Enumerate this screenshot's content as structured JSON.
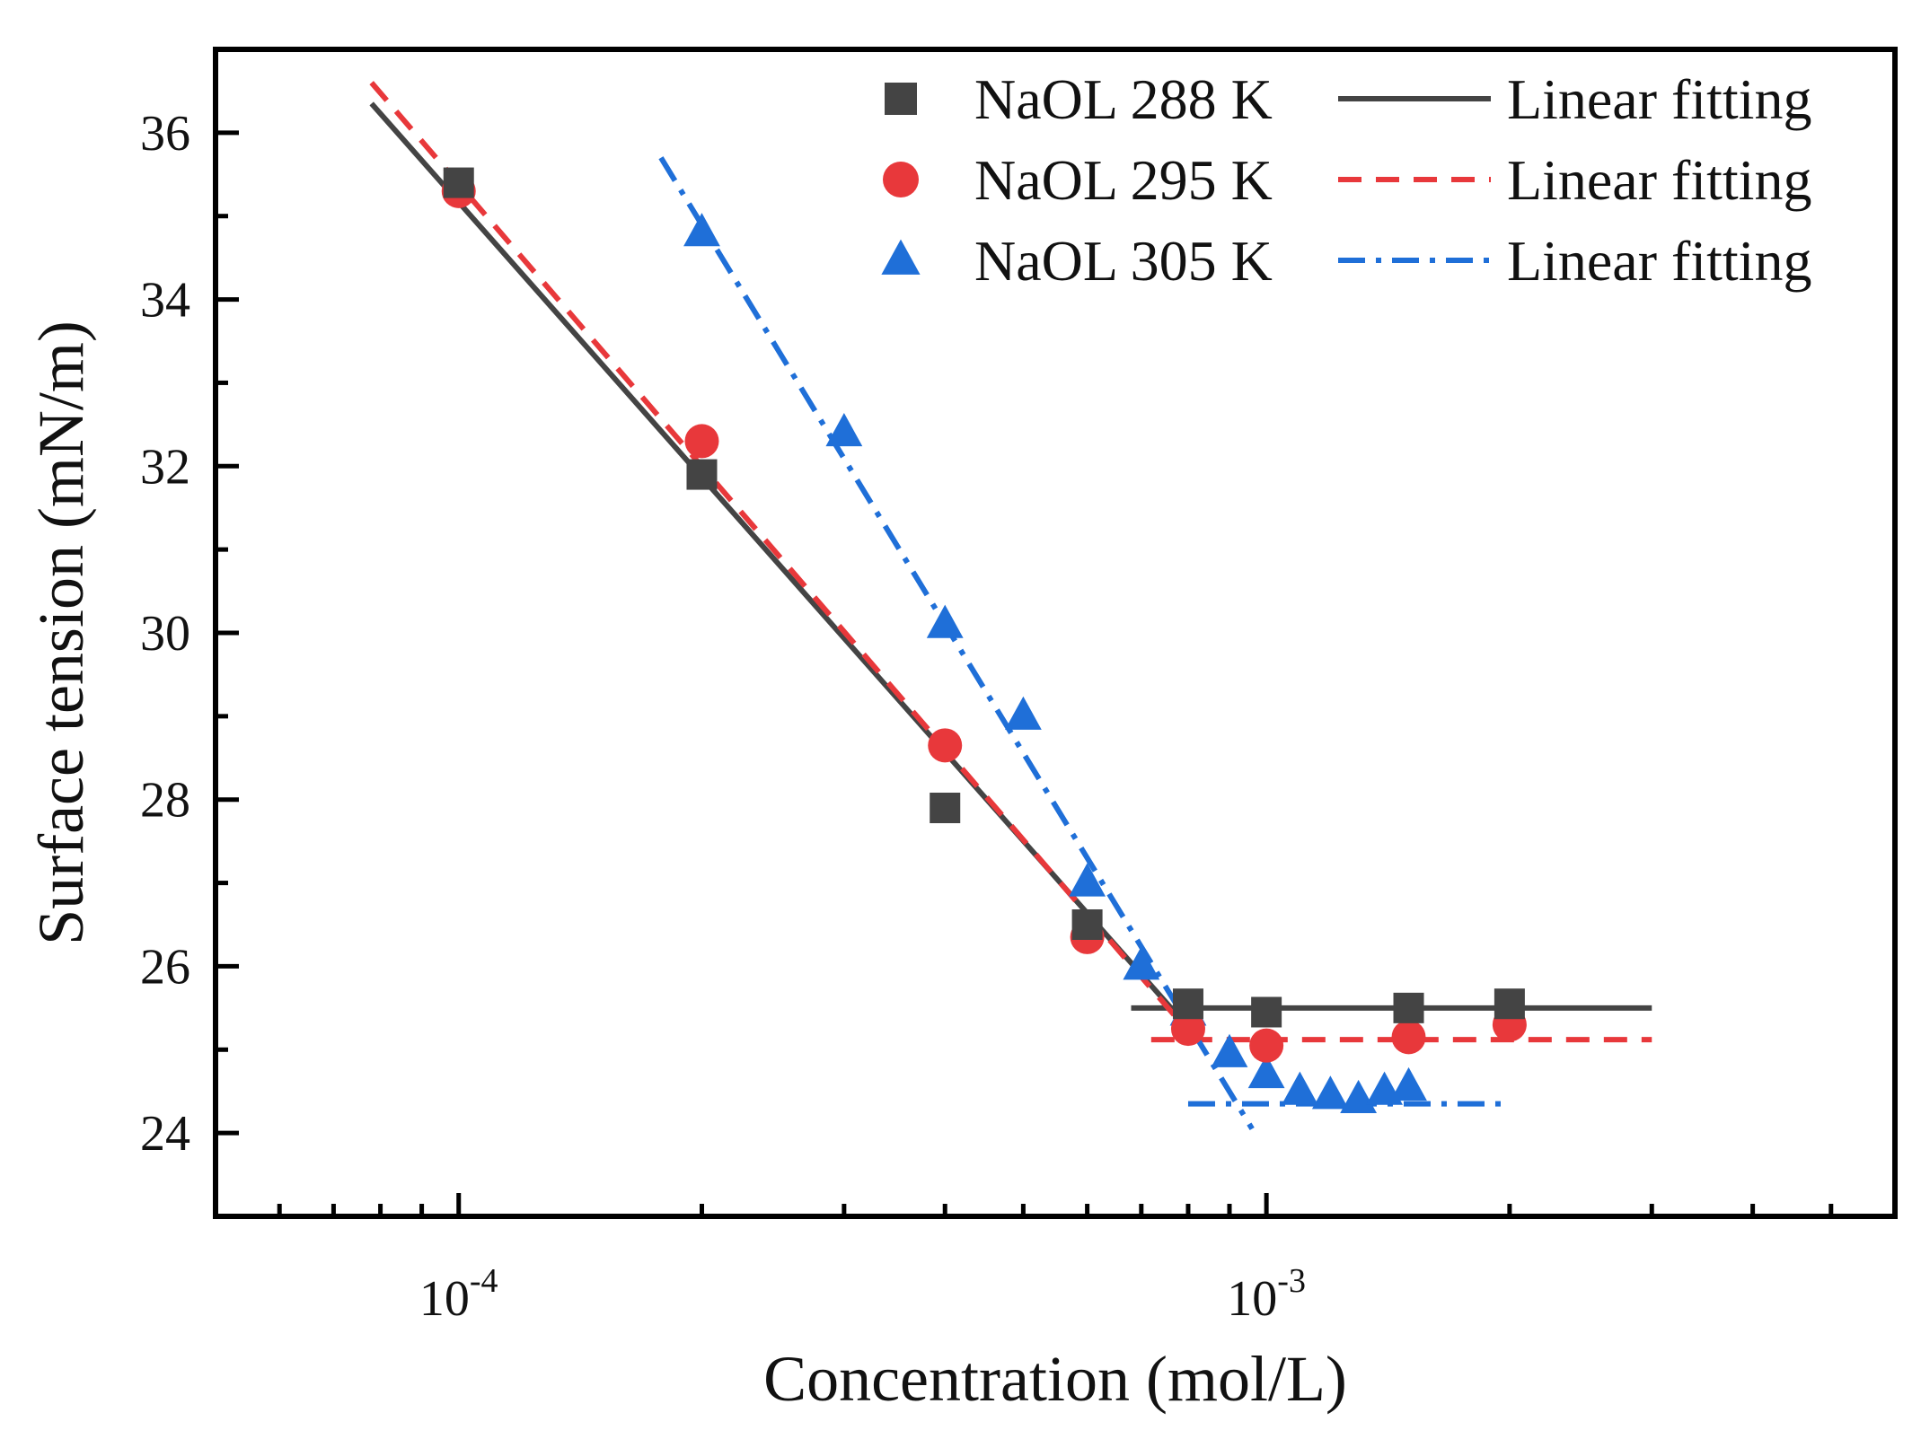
{
  "chart_data": {
    "type": "scatter",
    "xscale": "log",
    "xlim": [
      5e-05,
      0.006
    ],
    "ylim": [
      23.0,
      37.0
    ],
    "xlabel": "Concentration (mol/L)",
    "ylabel": "Surface tension (mN/m)",
    "x_ticks": [
      {
        "value": 0.0001,
        "base": "10",
        "exp": "-4"
      },
      {
        "value": 0.001,
        "base": "10",
        "exp": "-3"
      }
    ],
    "y_ticks": [
      24,
      26,
      28,
      30,
      32,
      34,
      36
    ],
    "legend_position": "top-right",
    "series": [
      {
        "name": "NaOL 288 K",
        "marker": "square",
        "color": "#444444",
        "points": [
          [
            0.0001,
            35.4
          ],
          [
            0.0002,
            31.9
          ],
          [
            0.0004,
            27.9
          ],
          [
            0.0006,
            26.5
          ],
          [
            0.0008,
            25.55
          ],
          [
            0.001,
            25.45
          ],
          [
            0.0015,
            25.5
          ],
          [
            0.002,
            25.55
          ]
        ],
        "fit_label": "Linear fitting",
        "fit_style": "solid",
        "fit_segments": [
          [
            [
              7.8e-05,
              36.35
            ],
            [
              0.00082,
              25.15
            ]
          ],
          [
            [
              0.00068,
              25.5
            ],
            [
              0.003,
              25.5
            ]
          ]
        ]
      },
      {
        "name": "NaOL 295 K",
        "marker": "circle",
        "color": "#e8383b",
        "points": [
          [
            0.0001,
            35.3
          ],
          [
            0.0002,
            32.3
          ],
          [
            0.0004,
            28.65
          ],
          [
            0.0006,
            26.35
          ],
          [
            0.0008,
            25.25
          ],
          [
            0.001,
            25.05
          ],
          [
            0.0015,
            25.15
          ],
          [
            0.002,
            25.3
          ]
        ],
        "fit_label": "Linear fitting",
        "fit_style": "dashed",
        "fit_segments": [
          [
            [
              7.8e-05,
              36.6
            ],
            [
              0.00082,
              25.1
            ]
          ],
          [
            [
              0.00072,
              25.12
            ],
            [
              0.003,
              25.12
            ]
          ]
        ]
      },
      {
        "name": "NaOL 305 K",
        "marker": "triangle",
        "color": "#1f6fd8",
        "points": [
          [
            0.0002,
            34.8
          ],
          [
            0.0003,
            32.4
          ],
          [
            0.0004,
            30.1
          ],
          [
            0.0005,
            29.0
          ],
          [
            0.0006,
            27.0
          ],
          [
            0.0007,
            26.0
          ],
          [
            0.0008,
            25.45
          ],
          [
            0.0009,
            24.95
          ],
          [
            0.001,
            24.7
          ],
          [
            0.0011,
            24.5
          ],
          [
            0.0012,
            24.45
          ],
          [
            0.0013,
            24.4
          ],
          [
            0.0014,
            24.5
          ],
          [
            0.0015,
            24.55
          ]
        ],
        "fit_label": "Linear fitting",
        "fit_style": "dashdot",
        "fit_segments": [
          [
            [
              0.000178,
              35.7
            ],
            [
              0.00096,
              24.05
            ]
          ],
          [
            [
              0.0008,
              24.35
            ],
            [
              0.002,
              24.35
            ]
          ]
        ]
      }
    ]
  }
}
